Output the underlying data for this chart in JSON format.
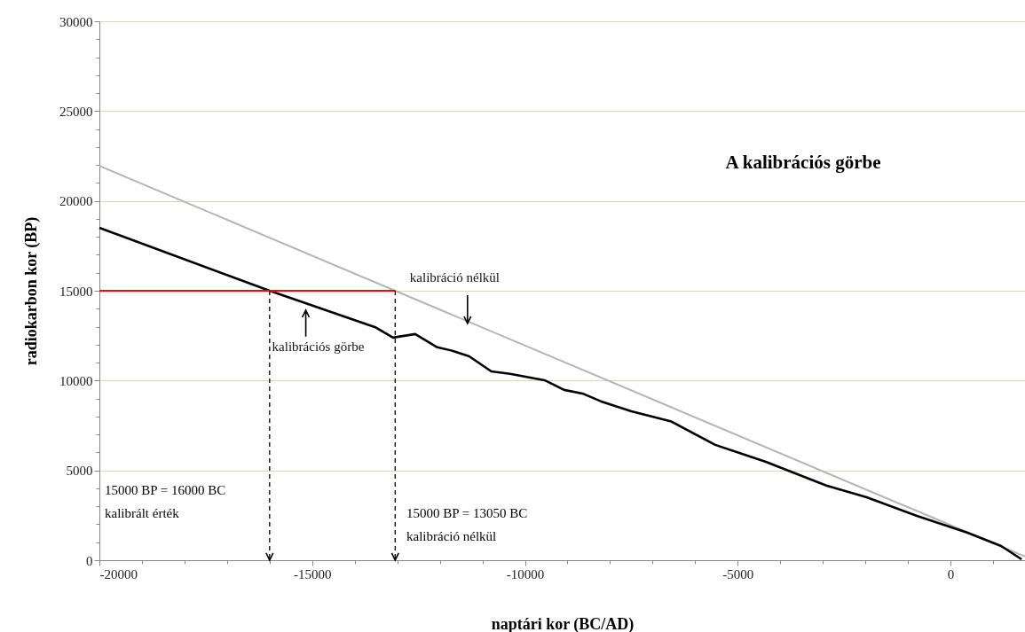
{
  "chart_data": {
    "type": "line",
    "xlabel": "naptári kor (BC/AD)",
    "ylabel": "radiokarbon kor (BP)",
    "xlim": [
      -20000,
      1750
    ],
    "ylim": [
      0,
      30000
    ],
    "xticks": [
      -20000,
      {
        "value": -19000,
        "label": null
      },
      {
        "value": -18000,
        "label": null
      },
      {
        "value": -17000,
        "label": null
      },
      {
        "value": -16000,
        "label": null
      },
      -15000,
      {
        "value": -14000,
        "label": null
      },
      {
        "value": -13000,
        "label": null
      },
      {
        "value": -12000,
        "label": null
      },
      {
        "value": -11000,
        "label": null
      },
      -10000,
      {
        "value": -9000,
        "label": null
      },
      {
        "value": -8000,
        "label": null
      },
      {
        "value": -7000,
        "label": null
      },
      {
        "value": -6000,
        "label": null
      },
      -5000,
      {
        "value": -4000,
        "label": null
      },
      {
        "value": -3000,
        "label": null
      },
      {
        "value": -2000,
        "label": null
      },
      {
        "value": -1000,
        "label": null
      },
      0,
      {
        "value": 1000,
        "label": null
      }
    ],
    "yticks": [
      0,
      {
        "value": 1000,
        "label": null
      },
      {
        "value": 2000,
        "label": null
      },
      {
        "value": 3000,
        "label": null
      },
      {
        "value": 4000,
        "label": null
      },
      5000,
      {
        "value": 6000,
        "label": null
      },
      {
        "value": 7000,
        "label": null
      },
      {
        "value": 8000,
        "label": null
      },
      {
        "value": 9000,
        "label": null
      },
      10000,
      {
        "value": 11000,
        "label": null
      },
      {
        "value": 12000,
        "label": null
      },
      {
        "value": 13000,
        "label": null
      },
      {
        "value": 14000,
        "label": null
      },
      15000,
      {
        "value": 16000,
        "label": null
      },
      {
        "value": 17000,
        "label": null
      },
      {
        "value": 18000,
        "label": null
      },
      {
        "value": 19000,
        "label": null
      },
      20000,
      {
        "value": 21000,
        "label": null
      },
      {
        "value": 22000,
        "label": null
      },
      {
        "value": 23000,
        "label": null
      },
      {
        "value": 24000,
        "label": null
      },
      25000,
      {
        "value": 26000,
        "label": null
      },
      {
        "value": 27000,
        "label": null
      },
      {
        "value": 28000,
        "label": null
      },
      {
        "value": 29000,
        "label": null
      },
      30000
    ],
    "grid": "y",
    "marker": "none",
    "series": [
      {
        "color": "#b4b4b4",
        "x": [
          -20000,
          1750
        ],
        "values": [
          21950,
          200
        ]
      },
      {
        "color": "#000000",
        "x": [
          -20000,
          -16000,
          -13500,
          -13100,
          -12580,
          -12060,
          -11690,
          -11310,
          -10790,
          -10350,
          -9540,
          -9080,
          -8650,
          -8220,
          -7500,
          -6560,
          -5530,
          -4340,
          -2920,
          -1970,
          -790,
          400,
          1190,
          1670
        ],
        "values": [
          18500,
          15000,
          12950,
          12390,
          12590,
          11850,
          11650,
          11350,
          10510,
          10370,
          10020,
          9480,
          9280,
          8850,
          8290,
          7720,
          6420,
          5480,
          4160,
          3500,
          2470,
          1530,
          790,
          50
        ]
      },
      {
        "color": "#ff0000",
        "x": [
          -20000,
          -13050
        ],
        "values": [
          15000,
          15000
        ]
      },
      {
        "color": "#000000",
        "line_style": "dashed",
        "x": [
          -16000,
          -16000
        ],
        "values": [
          15000,
          0
        ]
      },
      {
        "color": "#000000",
        "line_style": "dashed",
        "x": [
          -13050,
          -13050
        ],
        "values": [
          15000,
          0
        ]
      }
    ],
    "annotations": [
      "A kalibrációs görbe",
      {
        "text": "kalibráció nélkül",
        "x": -11350,
        "y": 13180
      },
      {
        "text": "kalibrációs görbe",
        "x": -15150,
        "y": 14070
      },
      "15000 BP = 16000 BC\nkalibrált érték",
      "15000 BP = 13050 BC\nkalibráció nélkül"
    ]
  }
}
